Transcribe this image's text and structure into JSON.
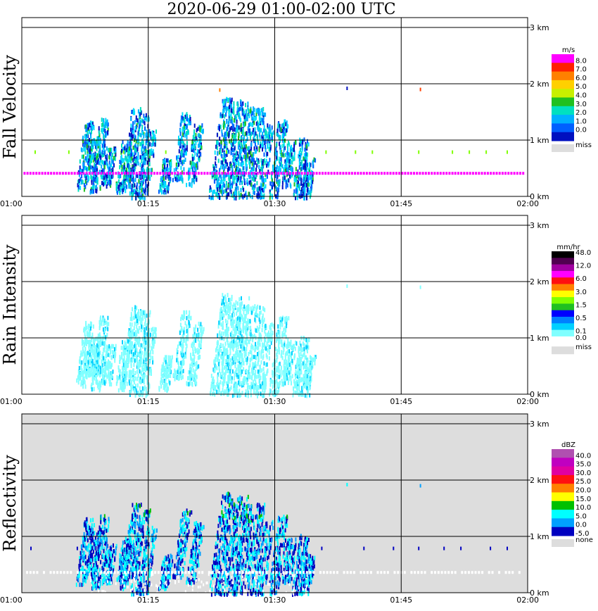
{
  "title": "2020-06-29   01:00-02:00 UTC",
  "chart_data": [
    {
      "type": "heatmap",
      "title": "Fall Velocity",
      "x_ticks": [
        "01:00",
        "01:15",
        "01:30",
        "01:45",
        "02:00"
      ],
      "y_ticks": [
        "0 km",
        "1 km",
        "2 km",
        "3 km"
      ],
      "xlim": [
        "01:00",
        "02:00"
      ],
      "ylim_km": [
        0,
        3.0
      ],
      "background": "#ffffff",
      "legend": {
        "unit": "m/s",
        "labels": [
          "8.0",
          "7.0",
          "6.0",
          "5.0",
          "4.0",
          "3.0",
          "2.0",
          "1.0",
          "0.0"
        ],
        "colors": [
          "#ff00ff",
          "#ff2000",
          "#ff8000",
          "#ffd000",
          "#c8f000",
          "#20c020",
          "#00e0c0",
          "#00b0ff",
          "#0060ff",
          "#0010c0"
        ],
        "miss_label": "miss",
        "miss_color": "#dddddd"
      }
    },
    {
      "type": "heatmap",
      "title": "Rain Intensity",
      "x_ticks": [
        "01:00",
        "01:15",
        "01:30",
        "01:45",
        "02:00"
      ],
      "y_ticks": [
        "0 km",
        "1 km",
        "2 km",
        "3 km"
      ],
      "xlim": [
        "01:00",
        "02:00"
      ],
      "ylim_km": [
        0,
        3.0
      ],
      "background": "#ffffff",
      "legend": {
        "unit": "mm/hr",
        "labels": [
          "48.0",
          "12.0",
          "6.0",
          "3.0",
          "1.5",
          "0.5",
          "0.1",
          "0.0"
        ],
        "colors": [
          "#000000",
          "#500050",
          "#a000a0",
          "#ff00ff",
          "#ff1010",
          "#ff8000",
          "#ffff00",
          "#80ff00",
          "#20c020",
          "#0000ff",
          "#0080ff",
          "#00d0ff",
          "#80ffff",
          "#ffffff"
        ],
        "miss_label": "miss",
        "miss_color": "#dddddd"
      }
    },
    {
      "type": "heatmap",
      "title": "Reflectivity",
      "x_ticks": [
        "01:00",
        "01:15",
        "01:30",
        "01:45",
        "02:00"
      ],
      "y_ticks": [
        "0 km",
        "1 km",
        "2 km",
        "3 km"
      ],
      "xlim": [
        "01:00",
        "02:00"
      ],
      "ylim_km": [
        0,
        3.0
      ],
      "background": "#dddddd",
      "legend": {
        "unit": "dBZ",
        "labels": [
          "40.0",
          "35.0",
          "30.0",
          "25.0",
          "20.0",
          "15.0",
          "10.0",
          "5.0",
          "0.0",
          "-5.0"
        ],
        "colors": [
          "#b050b0",
          "#c000c0",
          "#e000a0",
          "#ff1010",
          "#ff8000",
          "#ffff00",
          "#00c000",
          "#00ffff",
          "#00a0ff",
          "#0000c0"
        ],
        "miss_label": "none",
        "miss_color": "#dddddd"
      }
    }
  ]
}
